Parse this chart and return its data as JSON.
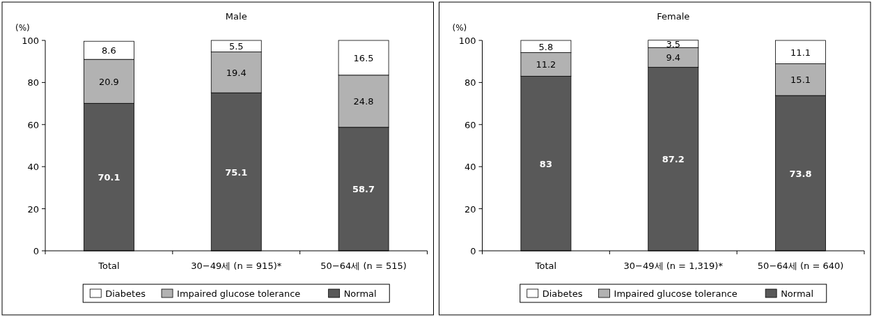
{
  "chart_data": [
    {
      "type": "bar",
      "stacked": true,
      "title": "Male",
      "ylabel": "(%)",
      "categories": [
        "Total",
        "30−49세 (n = 915)*",
        "50−64세 (n = 515)"
      ],
      "ylim": [
        0,
        100
      ],
      "yticks": [
        0,
        20,
        40,
        60,
        80,
        100
      ],
      "grid": false,
      "legend": "bottom",
      "data_labels": true,
      "series": [
        {
          "name": "Normal",
          "color": "#595959",
          "values": [
            70.1,
            75.1,
            58.7
          ]
        },
        {
          "name": "Impaired glucose tolerance",
          "color": "#b2b2b2",
          "values": [
            20.9,
            19.4,
            24.8
          ]
        },
        {
          "name": "Diabetes",
          "color": "#ffffff",
          "values": [
            8.6,
            5.5,
            16.5
          ]
        }
      ]
    },
    {
      "type": "bar",
      "stacked": true,
      "title": "Female",
      "ylabel": "(%)",
      "categories": [
        "Total",
        "30−49세 (n = 1,319)*",
        "50−64세 (n = 640)"
      ],
      "ylim": [
        0,
        100
      ],
      "yticks": [
        0,
        20,
        40,
        60,
        80,
        100
      ],
      "grid": false,
      "legend": "bottom",
      "data_labels": true,
      "series": [
        {
          "name": "Normal",
          "color": "#595959",
          "values": [
            83,
            87.2,
            73.8
          ]
        },
        {
          "name": "Impaired glucose tolerance",
          "color": "#b2b2b2",
          "values": [
            11.2,
            9.4,
            15.1
          ]
        },
        {
          "name": "Diabetes",
          "color": "#ffffff",
          "values": [
            5.8,
            3.5,
            11.1
          ]
        }
      ]
    }
  ]
}
